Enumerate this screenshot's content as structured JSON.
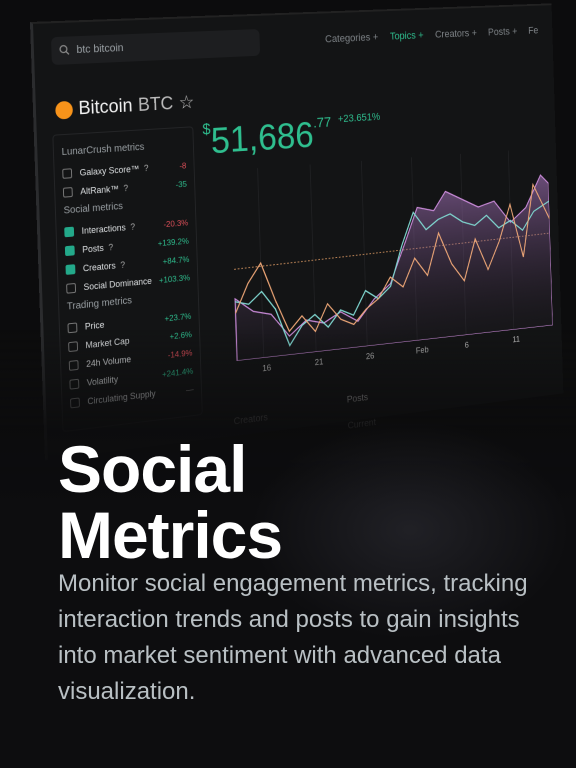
{
  "search": "btc bitcoin",
  "nav": [
    {
      "label": "Categories +",
      "active": false
    },
    {
      "label": "Topics +",
      "active": true
    },
    {
      "label": "Creators +",
      "active": false
    },
    {
      "label": "Posts +",
      "active": false
    },
    {
      "label": "Fe",
      "active": false
    }
  ],
  "asset": {
    "name": "Bitcoin",
    "symbol": "BTC",
    "star": "☆"
  },
  "price": {
    "currency": "$",
    "whole": "51,686",
    "cents": ".77",
    "change": "+23.651%"
  },
  "help_icon": "?",
  "metric_groups": [
    {
      "title": "LunarCrush metrics",
      "items": [
        {
          "label": "Galaxy Score™",
          "help": true,
          "value": "-8",
          "color": "#e0505a",
          "checked": false
        },
        {
          "label": "AltRank™",
          "help": true,
          "value": "-35",
          "color": "#2fbf8f",
          "checked": false
        }
      ]
    },
    {
      "title": "Social metrics",
      "items": [
        {
          "label": "Interactions",
          "help": true,
          "value": "-20.3%",
          "color": "#e0505a",
          "checked": true
        },
        {
          "label": "Posts",
          "help": true,
          "value": "+139.2%",
          "color": "#2fbf8f",
          "checked": true
        },
        {
          "label": "Creators",
          "help": true,
          "value": "+84.7%",
          "color": "#2fbf8f",
          "checked": true
        },
        {
          "label": "Social Dominance",
          "help": false,
          "value": "+103.3%",
          "color": "#2fbf8f",
          "checked": false
        }
      ]
    },
    {
      "title": "Trading metrics",
      "items": [
        {
          "label": "Price",
          "help": false,
          "value": "+23.7%",
          "color": "#2fbf8f",
          "checked": false
        },
        {
          "label": "Market Cap",
          "help": false,
          "value": "+2.6%",
          "color": "#2fbf8f",
          "checked": false
        },
        {
          "label": "24h Volume",
          "help": false,
          "value": "-14.9%",
          "color": "#e0505a",
          "checked": false
        },
        {
          "label": "Volatility",
          "help": false,
          "value": "+241.4%",
          "color": "#2fbf8f",
          "checked": false
        },
        {
          "label": "Circulating Supply",
          "help": false,
          "value": "—",
          "color": "#888888",
          "checked": false
        }
      ]
    }
  ],
  "x_labels": [
    "16",
    "21",
    "26",
    "Feb",
    "6",
    "11"
  ],
  "bottom_tabs": [
    "Creators",
    "Posts",
    "Current"
  ],
  "headline": [
    "Social",
    "Metrics"
  ],
  "description": "Monitor social engagement metrics, tracking interaction trends and posts to gain insights into market sentiment with advanced data visualization."
}
